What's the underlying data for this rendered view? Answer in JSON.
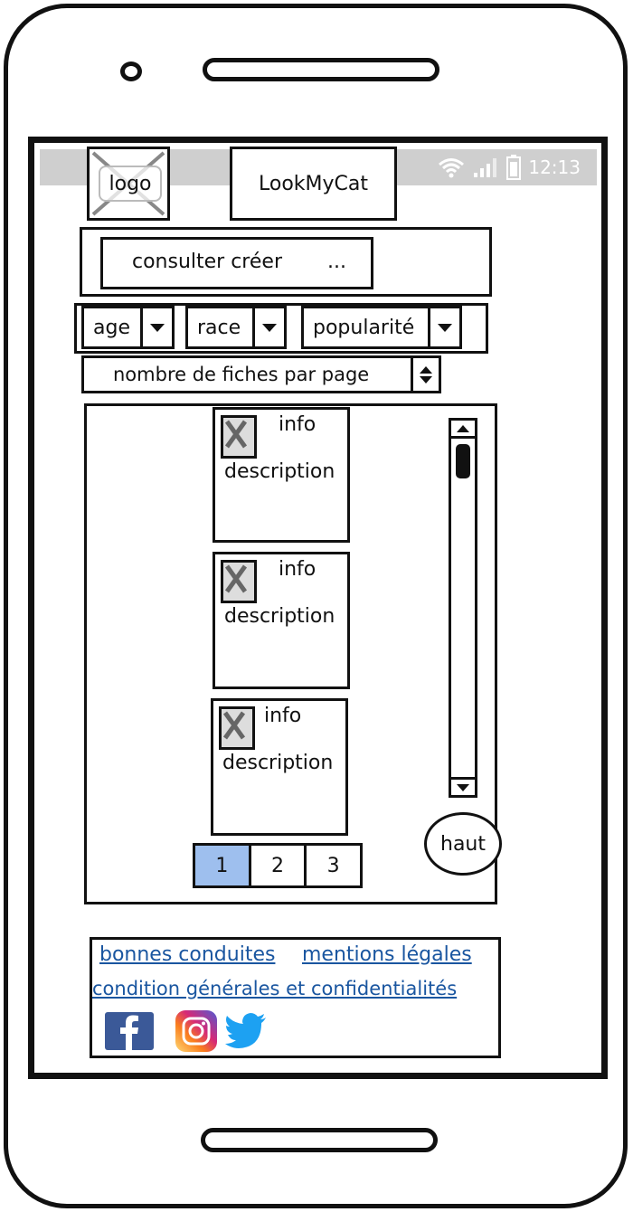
{
  "status_bar": {
    "time": "12:13"
  },
  "header": {
    "logo_label": "logo",
    "title": "LookMyCat"
  },
  "nav": {
    "label": "consulter créer",
    "more": "..."
  },
  "filters": [
    {
      "label": "age"
    },
    {
      "label": "race"
    },
    {
      "label": "popularité"
    }
  ],
  "per_page": {
    "label": "nombre de fiches par page"
  },
  "cards": [
    {
      "info": "info",
      "description": "description"
    },
    {
      "info": "info",
      "description": "description"
    },
    {
      "info": "info",
      "description": "description"
    }
  ],
  "pagination": {
    "pages": [
      "1",
      "2",
      "3"
    ],
    "active": "1"
  },
  "scroll_top": {
    "label": "haut"
  },
  "footer": {
    "links": [
      "bonnes conduites",
      "mentions légales",
      "condition générales et confidentialités"
    ]
  },
  "icons": {
    "facebook_color": "#3b5998",
    "twitter_color": "#1da1f2",
    "active_page_color": "#9ebfee",
    "status_bar_color": "#cfcfcf"
  }
}
